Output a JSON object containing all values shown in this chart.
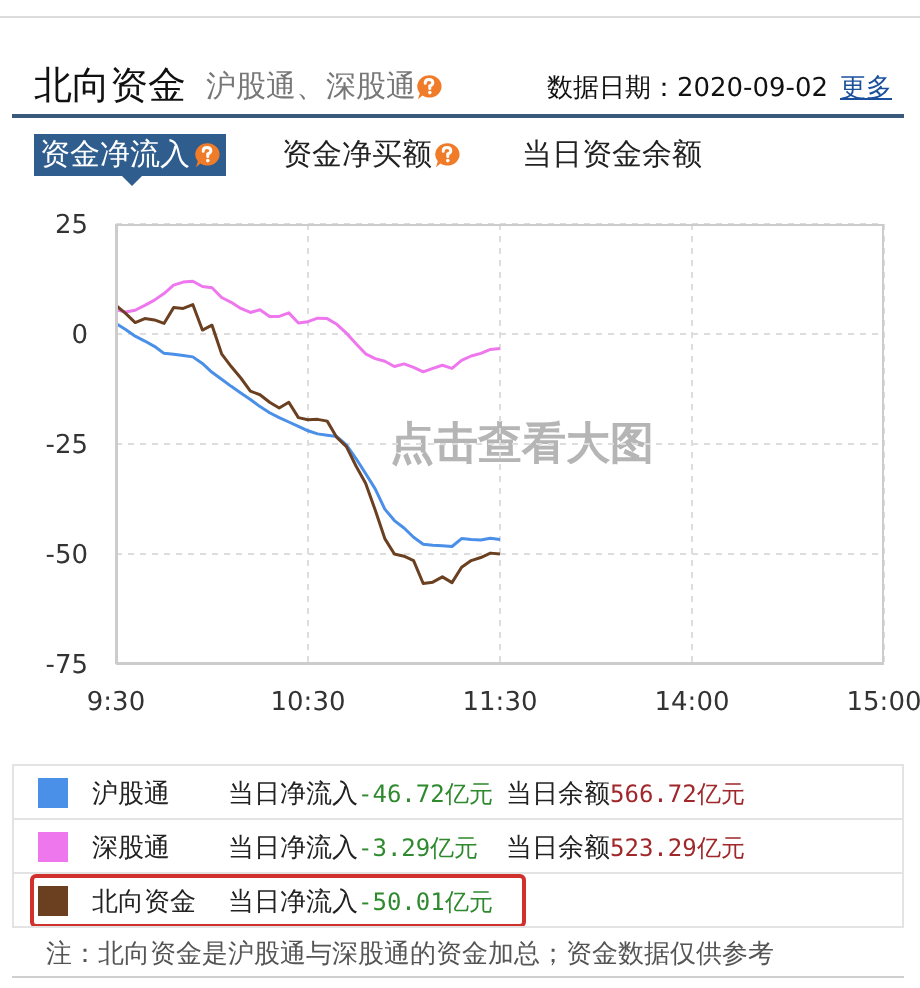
{
  "chart_data": {
    "type": "line",
    "title": "北向资金",
    "subtitle": "沪股通、深股通",
    "annotations": [
      "数据日期：2020-09-02",
      "更多",
      "资金净流入",
      "资金净买额",
      "当日资金余额",
      "点击查看大图",
      "当日净流入-46.72亿元",
      "当日余额566.72亿元",
      "当日净流入-3.29亿元",
      "当日余额523.29亿元",
      "当日净流入-50.01亿元",
      "注：北向资金是沪股通与深股通的资金加总；资金数据仅供参考"
    ],
    "categories": [
      "9:30",
      null,
      null,
      null,
      null,
      null,
      null,
      null,
      null,
      null,
      null,
      null,
      null,
      null,
      null,
      null,
      null,
      null,
      null,
      null,
      "10:30",
      null,
      null,
      null,
      null,
      null,
      null,
      null,
      null,
      null,
      null,
      null,
      null,
      null,
      null,
      null,
      null,
      null,
      null,
      null,
      "11:30",
      null,
      null,
      null,
      null,
      null,
      null,
      null,
      null,
      null,
      null,
      null,
      null,
      null,
      null,
      null,
      null,
      null,
      null,
      null,
      "14:00",
      null,
      null,
      null,
      null,
      null,
      null,
      null,
      null,
      null,
      null,
      null,
      null,
      null,
      null,
      null,
      null,
      null,
      null,
      null,
      "15:00"
    ],
    "ylim": [
      -75,
      25
    ],
    "yticks": [
      25,
      0,
      -25,
      -50,
      -75
    ],
    "grid": true,
    "legend": "bottom",
    "series": [
      {
        "name": "沪股通",
        "color": "#4a8fe8",
        "values": [
          2.4,
          1.0,
          -0.5,
          -1.6,
          -2.8,
          -4.4,
          -4.6,
          -4.9,
          -5.2,
          -6.7,
          -8.7,
          -10.3,
          -11.9,
          -13.4,
          -14.9,
          -16.5,
          -17.9,
          -19.0,
          -20.0,
          -21.0,
          -22.0,
          -22.7,
          -23.0,
          -23.3,
          -25.2,
          -28.3,
          -31.7,
          -35.2,
          -39.8,
          -42.4,
          -44.1,
          -46.2,
          -47.8,
          -48.0,
          -48.1,
          -48.3,
          -46.5,
          -46.7,
          -46.8,
          -46.4,
          -46.7,
          null,
          null,
          null,
          null,
          null,
          null,
          null,
          null,
          null,
          null,
          null,
          null,
          null,
          null,
          null,
          null,
          null,
          null,
          null,
          null,
          null,
          null,
          null,
          null,
          null,
          null,
          null,
          null,
          null,
          null,
          null,
          null,
          null,
          null,
          null,
          null,
          null,
          null,
          null,
          null
        ]
      },
      {
        "name": "深股通",
        "color": "#ee77ee",
        "values": [
          5.5,
          5.0,
          5.4,
          6.5,
          7.7,
          9.2,
          11.1,
          11.8,
          12.0,
          10.8,
          10.5,
          8.3,
          7.2,
          5.8,
          4.9,
          5.5,
          4.0,
          4.0,
          4.8,
          2.5,
          2.8,
          3.6,
          3.5,
          2.2,
          0.2,
          -2.2,
          -4.5,
          -5.6,
          -6.2,
          -7.4,
          -6.8,
          -7.6,
          -8.6,
          -7.8,
          -7.1,
          -7.8,
          -6.0,
          -5.0,
          -4.4,
          -3.5,
          -3.3,
          null,
          null,
          null,
          null,
          null,
          null,
          null,
          null,
          null,
          null,
          null,
          null,
          null,
          null,
          null,
          null,
          null,
          null,
          null,
          null,
          null,
          null,
          null,
          null,
          null,
          null,
          null,
          null,
          null,
          null,
          null,
          null,
          null,
          null,
          null,
          null,
          null,
          null,
          null,
          null
        ]
      },
      {
        "name": "北向资金",
        "color": "#6b4020",
        "values": [
          6.5,
          4.7,
          2.6,
          3.5,
          3.2,
          2.4,
          6.0,
          5.8,
          6.7,
          0.9,
          2.0,
          -4.5,
          -7.4,
          -10.0,
          -13.0,
          -13.8,
          -15.5,
          -16.8,
          -15.5,
          -19.0,
          -19.5,
          -19.4,
          -19.8,
          -23.5,
          -25.6,
          -30.0,
          -33.9,
          -40.0,
          -46.5,
          -50.0,
          -50.5,
          -51.5,
          -56.7,
          -56.4,
          -55.2,
          -56.5,
          -53.0,
          -51.5,
          -50.8,
          -49.8,
          -50.0,
          null,
          null,
          null,
          null,
          null,
          null,
          null,
          null,
          null,
          null,
          null,
          null,
          null,
          null,
          null,
          null,
          null,
          null,
          null,
          null,
          null,
          null,
          null,
          null,
          null,
          null,
          null,
          null,
          null,
          null,
          null,
          null,
          null,
          null,
          null,
          null,
          null,
          null,
          null,
          null
        ]
      }
    ]
  }
}
